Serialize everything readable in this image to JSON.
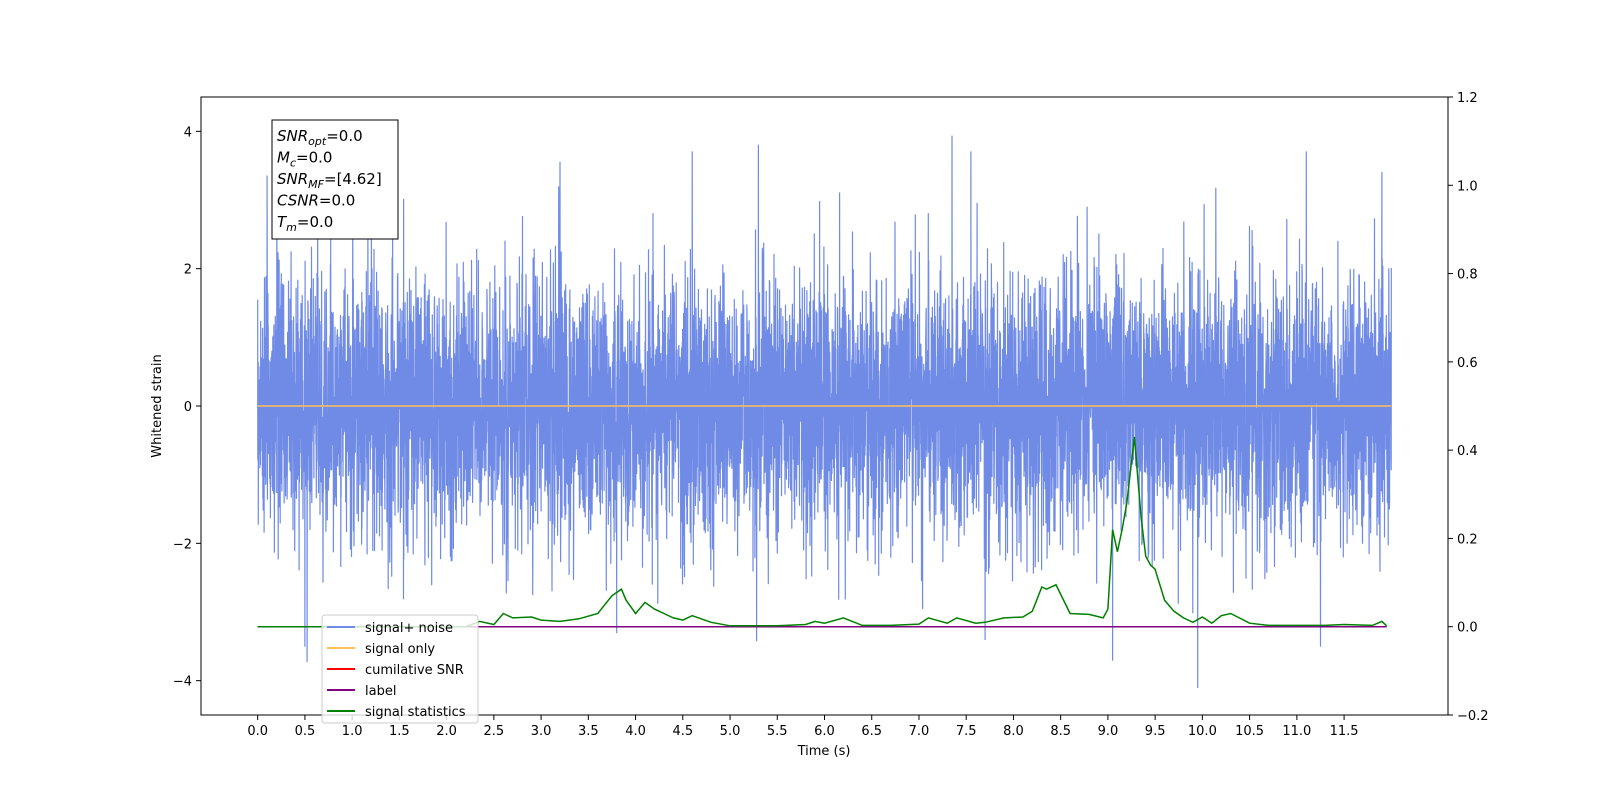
{
  "chart_data": {
    "type": "line",
    "xlabel": "Time (s)",
    "ylabel": "Whitened strain",
    "xlim": [
      -0.6,
      12.6
    ],
    "ylim": [
      -4.5,
      4.5
    ],
    "y2lim": [
      -0.2,
      1.2
    ],
    "x_ticks": [
      0.0,
      0.5,
      1.0,
      1.5,
      2.0,
      2.5,
      3.0,
      3.5,
      4.0,
      4.5,
      5.0,
      5.5,
      6.0,
      6.5,
      7.0,
      7.5,
      8.0,
      8.5,
      9.0,
      9.5,
      10.0,
      10.5,
      11.0,
      11.5
    ],
    "x_tick_labels": [
      "0.0",
      "0.5",
      "1.0",
      "1.5",
      "2.0",
      "2.5",
      "3.0",
      "3.5",
      "4.0",
      "4.5",
      "5.0",
      "5.5",
      "6.0",
      "6.5",
      "7.0",
      "7.5",
      "8.0",
      "8.5",
      "9.0",
      "9.5",
      "10.0",
      "10.5",
      "11.0",
      "11.5"
    ],
    "y_ticks": [
      -4,
      -2,
      0,
      2,
      4
    ],
    "y_tick_labels": [
      "−4",
      "−2",
      "0",
      "2",
      "4"
    ],
    "y2_ticks": [
      -0.2,
      0.0,
      0.2,
      0.4,
      0.6,
      0.8,
      1.0,
      1.2
    ],
    "y2_tick_labels": [
      "−0.2",
      "0.0",
      "0.2",
      "0.4",
      "0.6",
      "0.8",
      "1.0",
      "1.2"
    ],
    "grid": false,
    "legend_position": "lower-left",
    "annotation": {
      "lines": [
        {
          "sym": "SNR",
          "sub": "opt",
          "value": "=0.0"
        },
        {
          "sym": "M",
          "sub": "c",
          "value": "=0.0"
        },
        {
          "sym": "SNR",
          "sub": "MF",
          "value": "=[4.62]"
        },
        {
          "sym": "CSNR",
          "sub": "",
          "value": "=0.0"
        },
        {
          "sym": "T",
          "sub": "m",
          "value": "=0.0"
        }
      ]
    },
    "series": [
      {
        "name": "signal+ noise",
        "axis": "left",
        "color": "#6f8be6",
        "kind": "noise",
        "x_range": [
          0.0,
          12.0
        ],
        "envelope": [
          -4.1,
          3.93
        ],
        "extremes": [
          {
            "x": 0.1,
            "y": 3.35
          },
          {
            "x": 0.5,
            "y": -3.5
          },
          {
            "x": 3.2,
            "y": 3.55
          },
          {
            "x": 3.8,
            "y": -3.3
          },
          {
            "x": 4.6,
            "y": 3.7
          },
          {
            "x": 5.3,
            "y": 3.8
          },
          {
            "x": 7.35,
            "y": 3.93
          },
          {
            "x": 7.55,
            "y": 3.7
          },
          {
            "x": 7.7,
            "y": -3.4
          },
          {
            "x": 9.05,
            "y": -3.7
          },
          {
            "x": 9.95,
            "y": -4.1
          },
          {
            "x": 11.1,
            "y": 3.7
          },
          {
            "x": 11.25,
            "y": -3.5
          },
          {
            "x": 11.9,
            "y": 3.4
          }
        ]
      },
      {
        "name": "signal only",
        "axis": "left",
        "color": "#ffbe5c",
        "x": [
          0.0,
          12.0
        ],
        "y": [
          0.0,
          0.0
        ]
      },
      {
        "name": "cumilative SNR",
        "axis": "right",
        "color": "#ff0000",
        "x": [
          0.0,
          11.95
        ],
        "y": [
          0.0,
          0.0
        ]
      },
      {
        "name": "label",
        "axis": "right",
        "color": "#800080",
        "x": [
          0.0,
          11.95
        ],
        "y": [
          0.0,
          0.0
        ]
      },
      {
        "name": "signal statistics",
        "axis": "right",
        "color": "#008000",
        "x": [
          0.0,
          2.2,
          2.35,
          2.5,
          2.6,
          2.7,
          2.9,
          3.0,
          3.2,
          3.4,
          3.6,
          3.75,
          3.85,
          3.9,
          4.0,
          4.1,
          4.2,
          4.3,
          4.4,
          4.5,
          4.6,
          4.8,
          5.0,
          5.5,
          5.8,
          5.9,
          6.0,
          6.2,
          6.4,
          6.7,
          7.0,
          7.1,
          7.3,
          7.4,
          7.6,
          7.7,
          7.9,
          8.1,
          8.2,
          8.3,
          8.35,
          8.45,
          8.6,
          8.8,
          8.95,
          9.0,
          9.05,
          9.1,
          9.15,
          9.2,
          9.28,
          9.35,
          9.4,
          9.45,
          9.5,
          9.6,
          9.7,
          9.8,
          9.9,
          10.0,
          10.1,
          10.2,
          10.3,
          10.5,
          10.7,
          11.0,
          11.3,
          11.5,
          11.8,
          11.9,
          11.95
        ],
        "y": [
          0.0,
          0.0,
          0.012,
          0.005,
          0.03,
          0.02,
          0.022,
          0.015,
          0.012,
          0.018,
          0.03,
          0.07,
          0.085,
          0.06,
          0.03,
          0.055,
          0.04,
          0.03,
          0.02,
          0.015,
          0.025,
          0.01,
          0.002,
          0.002,
          0.005,
          0.012,
          0.008,
          0.02,
          0.003,
          0.003,
          0.006,
          0.02,
          0.008,
          0.02,
          0.008,
          0.01,
          0.02,
          0.022,
          0.035,
          0.09,
          0.085,
          0.095,
          0.03,
          0.028,
          0.02,
          0.04,
          0.22,
          0.17,
          0.22,
          0.28,
          0.43,
          0.25,
          0.16,
          0.14,
          0.13,
          0.06,
          0.035,
          0.02,
          0.01,
          0.022,
          0.008,
          0.025,
          0.03,
          0.008,
          0.003,
          0.003,
          0.003,
          0.005,
          0.003,
          0.012,
          0.002
        ]
      }
    ]
  }
}
